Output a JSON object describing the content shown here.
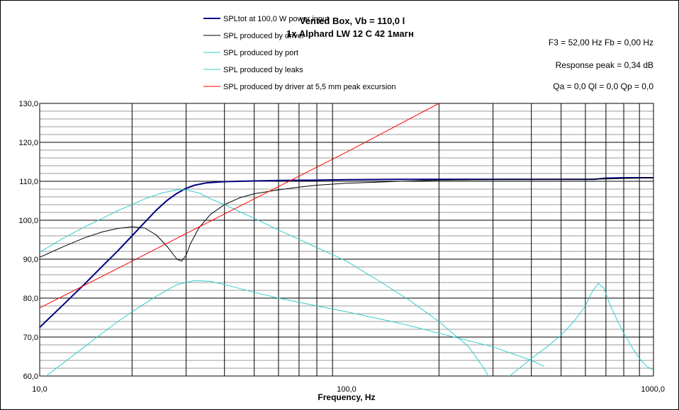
{
  "chart_data": {
    "type": "line",
    "title": "Vented Box, Vb = 110,0 l",
    "subtitle": "1x Alphard  LW 12 C 42 1магн",
    "xlabel": "Frequency, Hz",
    "ylabel": "",
    "x_scale": "log",
    "xlim": [
      10,
      1000
    ],
    "ylim": [
      60,
      130
    ],
    "x_ticks": [
      {
        "value": 10,
        "label": "10,0"
      },
      {
        "value": 100,
        "label": "100,0"
      },
      {
        "value": 1000,
        "label": "1000,0"
      }
    ],
    "y_ticks": [
      {
        "value": 60,
        "label": "60,0"
      },
      {
        "value": 70,
        "label": "70,0"
      },
      {
        "value": 80,
        "label": "80,0"
      },
      {
        "value": 90,
        "label": "90,0"
      },
      {
        "value": 100,
        "label": "100,0"
      },
      {
        "value": 110,
        "label": "110,0"
      },
      {
        "value": 120,
        "label": "120,0"
      },
      {
        "value": 130,
        "label": "130,0"
      }
    ],
    "grid": true,
    "legend_position": "top-left",
    "annotations": [
      "F3 = 52,00  Hz   Fb = 0,00  Hz",
      "Response peak = 0,34 dB",
      "Qa = 0,0   Ql = 0,0   Qp = 0,0"
    ],
    "series": [
      {
        "name": "SPLtot at 100,0 W power input",
        "color": "#000080",
        "width": 2,
        "x": [
          10,
          12,
          14,
          16,
          18,
          20,
          22,
          24,
          26,
          28,
          30,
          32,
          35,
          40,
          50,
          60,
          80,
          100,
          150,
          200,
          300,
          400,
          500,
          600,
          640,
          700,
          800,
          1000
        ],
        "y": [
          72.5,
          78.5,
          83.6,
          88.2,
          92.2,
          96.0,
          99.5,
          102.6,
          105.1,
          106.9,
          108.2,
          109.0,
          109.6,
          109.9,
          110.1,
          110.2,
          110.3,
          110.4,
          110.5,
          110.5,
          110.5,
          110.5,
          110.5,
          110.5,
          110.5,
          110.8,
          110.9,
          110.9
        ]
      },
      {
        "name": "SPL produced by driver",
        "color": "#000000",
        "width": 1,
        "x": [
          10,
          12,
          14,
          16,
          18,
          20,
          22,
          24,
          26,
          28,
          29,
          30,
          31,
          33,
          36,
          40,
          45,
          50,
          60,
          70,
          80,
          100,
          150,
          200,
          300,
          500,
          700,
          1000
        ],
        "y": [
          90.5,
          93.3,
          95.5,
          97.0,
          97.9,
          98.3,
          98.0,
          96.2,
          93.3,
          90.0,
          89.5,
          91.0,
          94.0,
          98.0,
          101.5,
          104.0,
          105.8,
          106.8,
          107.8,
          108.5,
          109.0,
          109.5,
          110.0,
          110.3,
          110.4,
          110.5,
          110.6,
          110.9
        ]
      },
      {
        "name": "SPL produced by port",
        "color": "#33CCCC",
        "width": 1,
        "x": [
          10,
          12,
          14,
          16,
          18,
          20,
          22,
          25,
          28,
          30,
          33,
          36,
          40,
          50,
          60,
          80,
          100,
          130,
          160,
          200,
          250,
          280,
          300
        ],
        "y": [
          91.8,
          95.5,
          98.3,
          100.5,
          102.5,
          104.0,
          105.5,
          107.0,
          107.8,
          107.8,
          107.0,
          105.5,
          104.0,
          100.5,
          97.5,
          93.0,
          89.5,
          84.0,
          79.5,
          74.0,
          67.5,
          62.0,
          58.0
        ]
      },
      {
        "name": "SPL produced by leaks",
        "color": "#33CCCC",
        "width": 1,
        "x": [
          10.5,
          12,
          14,
          16,
          18,
          20,
          24,
          28,
          32,
          36,
          40,
          50,
          60,
          80,
          100,
          150,
          200,
          300,
          400,
          440
        ],
        "y": [
          60.0,
          63.5,
          67.5,
          71.0,
          74.0,
          76.5,
          80.5,
          83.5,
          84.5,
          84.3,
          83.5,
          81.5,
          80.0,
          78.0,
          76.5,
          73.5,
          71.0,
          67.5,
          64.0,
          62.5
        ],
        "x2": [
          300,
          340,
          400,
          450,
          500,
          550,
          600,
          630,
          660,
          690,
          720,
          760,
          800,
          850,
          900,
          950,
          1000
        ],
        "y2": [
          58.0,
          60.0,
          64.5,
          67.5,
          70.5,
          74.0,
          78.0,
          81.5,
          83.8,
          82.5,
          78.5,
          74.5,
          71.0,
          67.5,
          64.5,
          62.5,
          61.5
        ]
      },
      {
        "name": "SPL produced by driver at 5,5 mm peak excursion",
        "color": "#FF0000",
        "width": 1,
        "x": [
          10,
          20,
          50,
          100,
          200
        ],
        "y": [
          77.5,
          89.5,
          105.5,
          117.5,
          130.0
        ]
      }
    ]
  }
}
